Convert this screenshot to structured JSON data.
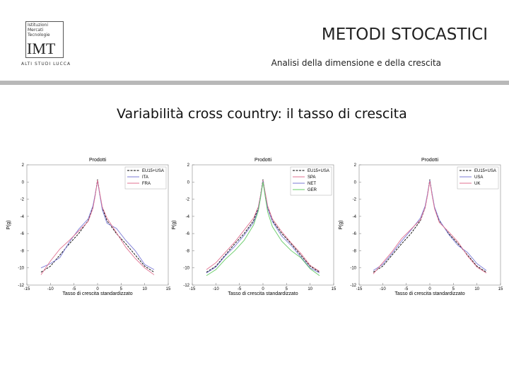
{
  "header": {
    "logo": {
      "lines": [
        "Istituzioni",
        "Mercati",
        "Tecnologie"
      ],
      "mark": "IMT",
      "subtitle": "ALTI STUDI LUCCA"
    },
    "title": "METODI STOCASTICI",
    "subtitle": "Analisi della dimensione e della crescita"
  },
  "slide_title": "Variabilità cross country: il tasso di crescita",
  "chart_data": [
    {
      "type": "line",
      "title": "Prodotti",
      "xlabel": "Tasso di crescita standardizzato",
      "ylabel": "P(g)",
      "xlim": [
        -15,
        15
      ],
      "ylim": [
        -12,
        2
      ],
      "xticks": [
        -15,
        -10,
        -5,
        0,
        5,
        10,
        15
      ],
      "yticks": [
        -12,
        -10,
        -8,
        -6,
        -4,
        -2,
        0,
        2
      ],
      "legend": "upper right",
      "x": [
        -12,
        -10,
        -8,
        -6,
        -4,
        -2,
        -1,
        -0.5,
        0,
        0.5,
        1,
        2,
        4,
        6,
        8,
        10,
        12
      ],
      "series": [
        {
          "name": "EU15+USA",
          "color": "#000000",
          "linestyle": "dashed",
          "values": [
            -10.5,
            -9.8,
            -8.5,
            -7.2,
            -6,
            -4.5,
            -3,
            -1.5,
            0.3,
            -1.5,
            -3,
            -4.5,
            -6,
            -7.2,
            -8.5,
            -9.8,
            -10.5
          ]
        },
        {
          "name": "ITA",
          "color": "#7b7bd6",
          "values": [
            -10,
            -9.5,
            -8.8,
            -7,
            -5.5,
            -4.3,
            -2.8,
            -1.4,
            0.1,
            -1.6,
            -3.2,
            -4.8,
            -5.4,
            -6.8,
            -8,
            -9.6,
            -10.2
          ]
        },
        {
          "name": "FRA",
          "color": "#e07090",
          "values": [
            -10.8,
            -9.2,
            -7.8,
            -6.8,
            -5.7,
            -4.6,
            -3.1,
            -1.6,
            0.2,
            -1.4,
            -2.9,
            -4.2,
            -5.9,
            -7.6,
            -8.9,
            -10,
            -10.8
          ]
        }
      ]
    },
    {
      "type": "line",
      "title": "Prodotti",
      "xlabel": "Tasso di crescita standardizzato",
      "ylabel": "P(g)",
      "xlim": [
        -15,
        15
      ],
      "ylim": [
        -12,
        2
      ],
      "xticks": [
        -15,
        -10,
        -5,
        0,
        5,
        10,
        15
      ],
      "yticks": [
        -12,
        -10,
        -8,
        -6,
        -4,
        -2,
        0,
        2
      ],
      "legend": "upper right",
      "x": [
        -12,
        -10,
        -8,
        -6,
        -4,
        -2,
        -1,
        -0.5,
        0,
        0.5,
        1,
        2,
        4,
        6,
        8,
        10,
        12
      ],
      "series": [
        {
          "name": "EU15+USA",
          "color": "#000000",
          "linestyle": "dashed",
          "values": [
            -10.5,
            -9.8,
            -8.5,
            -7.2,
            -6,
            -4.5,
            -3,
            -1.5,
            0.3,
            -1.5,
            -3,
            -4.5,
            -6,
            -7.2,
            -8.5,
            -9.8,
            -10.5
          ]
        },
        {
          "name": "SPA",
          "color": "#e07090",
          "values": [
            -10.2,
            -9.4,
            -8.2,
            -7,
            -5.6,
            -4.2,
            -2.9,
            -1.5,
            0.2,
            -1.3,
            -2.8,
            -4.3,
            -5.8,
            -7.1,
            -8.3,
            -9.7,
            -10.4
          ]
        },
        {
          "name": "NET",
          "color": "#7b7bd6",
          "values": [
            -10.6,
            -9.9,
            -8.6,
            -7.5,
            -6.2,
            -4.7,
            -3.2,
            -1.7,
            0.1,
            -1.7,
            -3.1,
            -4.6,
            -6.3,
            -7.4,
            -8.7,
            -10,
            -10.6
          ]
        },
        {
          "name": "GER",
          "color": "#66cc66",
          "values": [
            -10.9,
            -10.2,
            -9,
            -8,
            -6.8,
            -5,
            -3.4,
            -1.8,
            0,
            -1.8,
            -3.5,
            -5.2,
            -6.9,
            -8,
            -8.8,
            -10.1,
            -10.9
          ]
        }
      ]
    },
    {
      "type": "line",
      "title": "Prodotti",
      "xlabel": "Tasso di crescita standardizzato",
      "ylabel": "P(g)",
      "xlim": [
        -15,
        15
      ],
      "ylim": [
        -12,
        2
      ],
      "xticks": [
        -15,
        -10,
        -5,
        0,
        5,
        10,
        15
      ],
      "yticks": [
        -12,
        -10,
        -8,
        -6,
        -4,
        -2,
        0,
        2
      ],
      "legend": "upper right",
      "x": [
        -12,
        -10,
        -8,
        -6,
        -4,
        -2,
        -1,
        -0.5,
        0,
        0.5,
        1,
        2,
        4,
        6,
        8,
        10,
        12
      ],
      "series": [
        {
          "name": "EU15+USA",
          "color": "#000000",
          "linestyle": "dashed",
          "values": [
            -10.5,
            -9.8,
            -8.5,
            -7.2,
            -6,
            -4.5,
            -3,
            -1.5,
            0.3,
            -1.5,
            -3,
            -4.5,
            -6,
            -7.2,
            -8.5,
            -9.8,
            -10.5
          ]
        },
        {
          "name": "USA",
          "color": "#7b7bd6",
          "values": [
            -10.3,
            -9.6,
            -8.3,
            -6.9,
            -5.6,
            -4.2,
            -2.8,
            -1.4,
            0.2,
            -1.4,
            -2.9,
            -4.4,
            -6.1,
            -7.4,
            -8.2,
            -9.5,
            -10.3
          ]
        },
        {
          "name": "UK",
          "color": "#e07090",
          "values": [
            -10.7,
            -9.4,
            -8.1,
            -6.6,
            -5.5,
            -4.4,
            -3,
            -1.6,
            0.1,
            -1.6,
            -3.1,
            -4.7,
            -5.8,
            -7,
            -8.6,
            -9.9,
            -10.6
          ]
        }
      ]
    }
  ]
}
